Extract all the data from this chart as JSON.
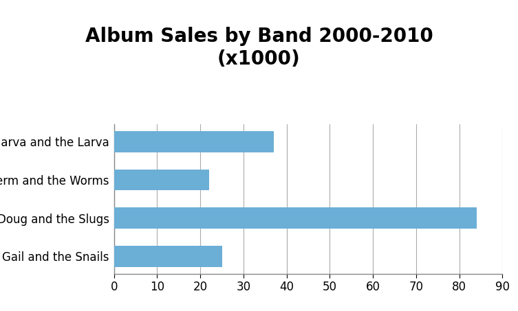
{
  "title": "Album Sales by Band 2000-2010\n(x1000)",
  "categories": [
    "Gail and the Snails",
    "Doug and the Slugs",
    "Sherm and the Worms",
    "Marva and the Larva"
  ],
  "values": [
    25,
    84,
    22,
    37
  ],
  "bar_color": "#6baed6",
  "xlim": [
    0,
    90
  ],
  "xticks": [
    0,
    10,
    20,
    30,
    40,
    50,
    60,
    70,
    80,
    90
  ],
  "title_fontsize": 20,
  "tick_fontsize": 12,
  "label_fontsize": 12,
  "background_color": "#ffffff",
  "grid_color": "#aaaaaa"
}
